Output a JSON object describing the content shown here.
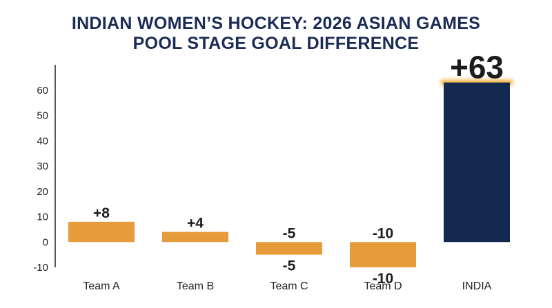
{
  "chart_data": {
    "type": "bar",
    "title_line1": "INDIAN WOMEN’S HOCKEY: 2026 ASIAN GAMES",
    "title_line2": "POOL STAGE GOAL DIFFERENCE",
    "categories": [
      "Team A",
      "Team B",
      "Team C",
      "Team D",
      "INDIA"
    ],
    "values": [
      8,
      4,
      -5,
      -10,
      63
    ],
    "data_labels": [
      "+8",
      "+4",
      "-5",
      "-10",
      "+63"
    ],
    "extra_labels": [
      "",
      "",
      "-5",
      "-10",
      ""
    ],
    "yticks": [
      -10,
      0,
      10,
      20,
      30,
      40,
      50,
      60
    ],
    "ylim": [
      -10,
      70
    ],
    "grid": false,
    "colors": {
      "default_bar": "#e69c3a",
      "highlight_bar": "#13294f",
      "highlight_glow": "#f5a623",
      "title": "#1a2b55"
    },
    "highlight_index": 4
  }
}
